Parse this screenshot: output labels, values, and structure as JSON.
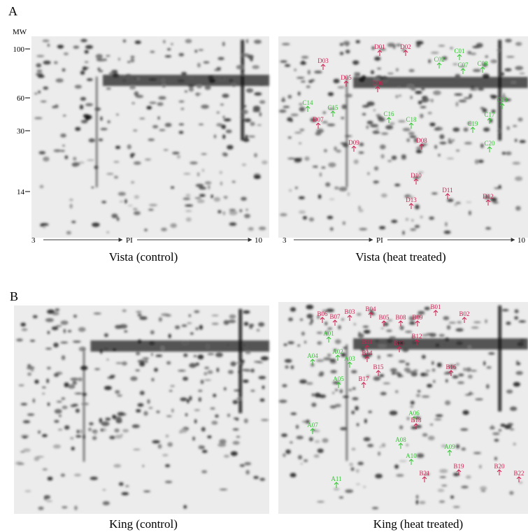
{
  "panel_a": {
    "label": "A",
    "mw_title": "MW",
    "mw_ticks": [
      "100",
      "60",
      "30",
      "14"
    ],
    "left": {
      "pi_start": "3",
      "pi_title": "PI",
      "pi_end": "10",
      "caption": "Vista (control)"
    },
    "right": {
      "pi_start": "3",
      "pi_title": "PI",
      "pi_end": "10",
      "caption": "Vista (heat treated)",
      "spots_green": [
        "C01",
        "C02",
        "C07",
        "C08",
        "C13",
        "C14",
        "C15",
        "C16",
        "C17",
        "C18",
        "C19",
        "C20"
      ],
      "spots_red": [
        "D01",
        "D02",
        "D03",
        "D05",
        "D06",
        "D07",
        "D08",
        "D09",
        "D10",
        "D11",
        "D12",
        "D13"
      ]
    }
  },
  "panel_b": {
    "label": "B",
    "left": {
      "caption": "King (control)"
    },
    "right": {
      "caption": "King (heat treated)",
      "spots_green": [
        "A01",
        "A02",
        "A03",
        "A04",
        "A05",
        "A06",
        "A07",
        "A08",
        "A09",
        "A10",
        "A11"
      ],
      "spots_red": [
        "B01",
        "B02",
        "B03",
        "B04",
        "B05",
        "B06",
        "B07",
        "B08",
        "B09",
        "B11",
        "B12",
        "B13",
        "B14",
        "B15",
        "B16",
        "B17",
        "B18",
        "B19",
        "B20",
        "B21",
        "B22"
      ]
    }
  }
}
